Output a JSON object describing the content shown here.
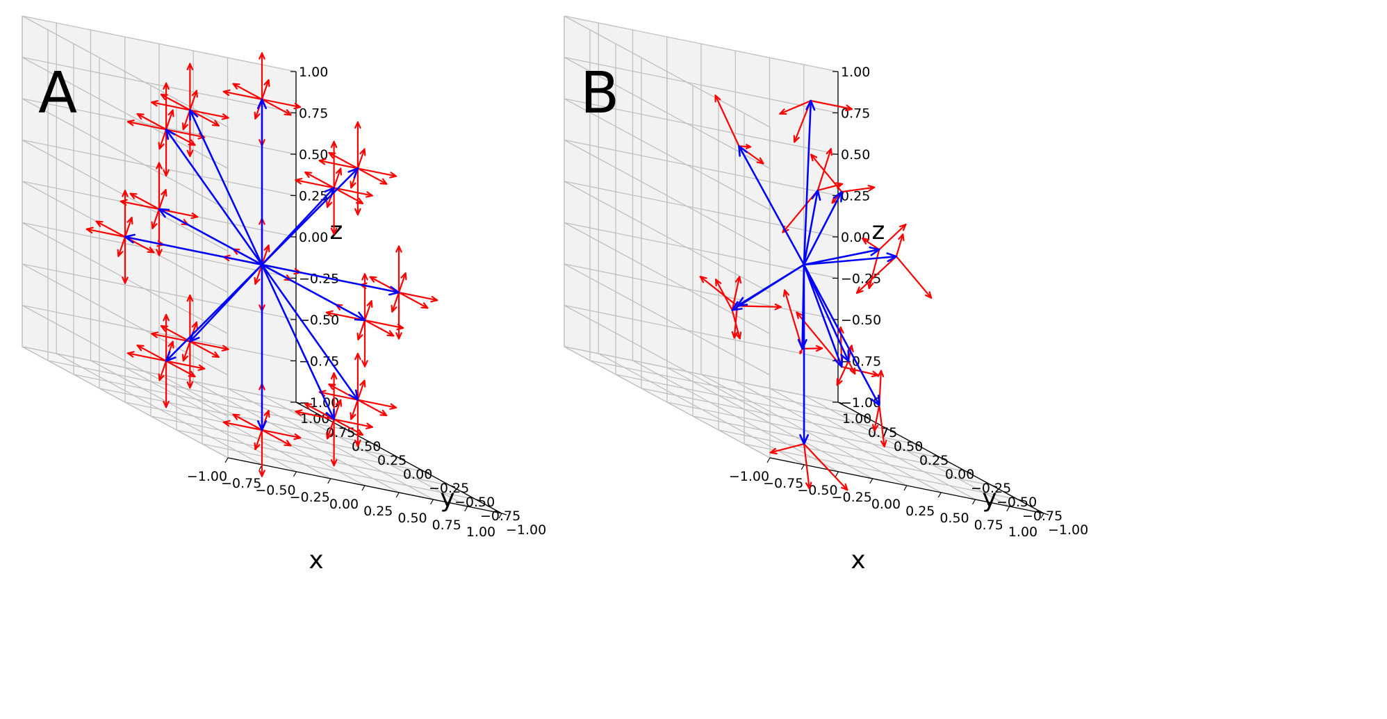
{
  "chart_data": [
    {
      "type": "quiver3d",
      "panel_label": "A",
      "xlabel": "x",
      "ylabel": "y",
      "zlabel": "z",
      "xlim": [
        -1,
        1
      ],
      "ylim": [
        -1,
        1
      ],
      "zlim": [
        -1,
        1
      ],
      "ticks": [
        -1.0,
        -0.75,
        -0.5,
        -0.25,
        0.0,
        0.25,
        0.5,
        0.75,
        1.0
      ],
      "tick_labels": [
        "−1.00",
        "−0.75",
        "−0.50",
        "−0.25",
        "0.00",
        "0.25",
        "0.50",
        "0.75",
        "1.00"
      ],
      "grid": true,
      "series": [
        {
          "name": "blue",
          "color": "#0000ff",
          "origin": [
            0,
            0,
            0
          ],
          "tips": [
            [
              0,
              0,
              1
            ],
            [
              0,
              0,
              -1
            ],
            [
              1,
              0,
              0
            ],
            [
              -1,
              0,
              0
            ],
            [
              0,
              1,
              0
            ],
            [
              0,
              -1,
              0
            ],
            [
              0.7,
              0,
              0.7
            ],
            [
              -0.7,
              0,
              0.7
            ],
            [
              0.7,
              0,
              -0.7
            ],
            [
              -0.7,
              0,
              -0.7
            ],
            [
              0,
              0.7,
              0.7
            ],
            [
              0,
              -0.7,
              0.7
            ],
            [
              0,
              0.7,
              -0.7
            ],
            [
              0,
              -0.7,
              -0.7
            ]
          ]
        },
        {
          "name": "red",
          "color": "#ff0000",
          "star_at": "blue tips and origin",
          "arm_length": 0.28,
          "arm_count": 8
        }
      ]
    },
    {
      "type": "quiver3d",
      "panel_label": "B",
      "xlabel": "x",
      "ylabel": "y",
      "zlabel": "z",
      "xlim": [
        -1,
        1
      ],
      "ylim": [
        -1,
        1
      ],
      "zlim": [
        -1,
        1
      ],
      "ticks": [
        -1.0,
        -0.75,
        -0.5,
        -0.25,
        0.0,
        0.25,
        0.5,
        0.75,
        1.0
      ],
      "tick_labels": [
        "−1.00",
        "−0.75",
        "−0.50",
        "−0.25",
        "0.00",
        "0.25",
        "0.50",
        "0.75",
        "1.00"
      ],
      "grid": true,
      "series": [
        {
          "name": "blue",
          "color": "#0000ff",
          "origin": [
            0,
            0,
            0
          ],
          "tips": [
            [
              0.05,
              0.0,
              1.0
            ],
            [
              -0.7,
              -0.3,
              0.7
            ],
            [
              -0.2,
              -0.4,
              0.55
            ],
            [
              0.05,
              -0.3,
              0.55
            ],
            [
              0.85,
              0.4,
              0.1
            ],
            [
              0.9,
              0.3,
              0.1
            ],
            [
              -0.75,
              -0.3,
              -0.3
            ],
            [
              -0.6,
              -0.15,
              -0.3
            ],
            [
              0.7,
              0.2,
              -0.8
            ],
            [
              0.2,
              -0.1,
              -0.55
            ],
            [
              0.4,
              0.1,
              -0.55
            ],
            [
              -0.3,
              -0.4,
              -1.0
            ],
            [
              -0.05,
              -0.05,
              -0.5
            ]
          ]
        },
        {
          "name": "red",
          "color": "#ff0000",
          "triad_at": "blue tips",
          "arm_length": 0.3,
          "arm_count": 3
        }
      ]
    }
  ]
}
